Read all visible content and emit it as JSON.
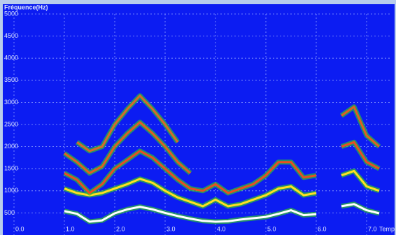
{
  "chart_data": {
    "type": "spectrogram",
    "title": "Fréquence(Hz)",
    "x_label": "Temp",
    "xlim": [
      0,
      7.5
    ],
    "ylim": [
      0,
      5000
    ],
    "xticks": [
      {
        "value": 0,
        "label": "0.0"
      },
      {
        "value": 1,
        "label": "1.0"
      },
      {
        "value": 2,
        "label": "2.0"
      },
      {
        "value": 3,
        "label": "3.0"
      },
      {
        "value": 4,
        "label": "4.0"
      },
      {
        "value": 5,
        "label": "5.0"
      },
      {
        "value": 6,
        "label": "6.0"
      },
      {
        "value": 7,
        "label": "7.0"
      }
    ],
    "yticks": [
      500,
      1000,
      1500,
      2000,
      2500,
      3000,
      3500,
      4000,
      4500,
      5000
    ],
    "grid": true,
    "background": "#0c1cf2",
    "x": [
      1.0,
      1.25,
      1.5,
      1.75,
      2.0,
      2.25,
      2.5,
      2.75,
      3.0,
      3.25,
      3.5,
      3.75,
      4.0,
      4.25,
      4.5,
      4.75,
      5.0,
      5.25,
      5.5,
      5.75,
      6.0,
      6.25,
      6.5,
      6.75,
      7.0,
      7.25
    ],
    "series": [
      {
        "color": "#ffffff",
        "values": [
          540,
          480,
          300,
          330,
          490,
          580,
          640,
          580,
          500,
          430,
          370,
          320,
          300,
          310,
          350,
          380,
          410,
          480,
          560,
          450,
          470,
          null,
          650,
          700,
          560,
          490
        ]
      },
      {
        "color": "#ffe020",
        "values": [
          1050,
          950,
          900,
          950,
          1050,
          1150,
          1270,
          1180,
          1000,
          850,
          750,
          650,
          800,
          650,
          700,
          800,
          900,
          1050,
          1100,
          900,
          950,
          null,
          1350,
          1450,
          1100,
          1000
        ]
      },
      {
        "color": "#e85020",
        "values": [
          1400,
          1250,
          950,
          1150,
          1500,
          1700,
          1900,
          1750,
          1500,
          1250,
          1050,
          1000,
          1150,
          950,
          1050,
          1150,
          1350,
          1650,
          1650,
          1300,
          1350,
          null,
          2000,
          2100,
          1650,
          1500
        ]
      },
      {
        "color": "#e06020",
        "values": [
          1850,
          1650,
          1400,
          1550,
          2000,
          2300,
          2550,
          2300,
          2000,
          1650,
          1400,
          null,
          null,
          null,
          null,
          null,
          null,
          null,
          null,
          null,
          null,
          null,
          2700,
          2900,
          2250,
          2000
        ]
      },
      {
        "color": "#d86a28",
        "values": [
          null,
          2100,
          1900,
          2000,
          2500,
          2850,
          3150,
          2850,
          2500,
          2100,
          null,
          null,
          null,
          null,
          null,
          null,
          null,
          null,
          null,
          null,
          null,
          null,
          null,
          null,
          null,
          null
        ]
      }
    ]
  }
}
